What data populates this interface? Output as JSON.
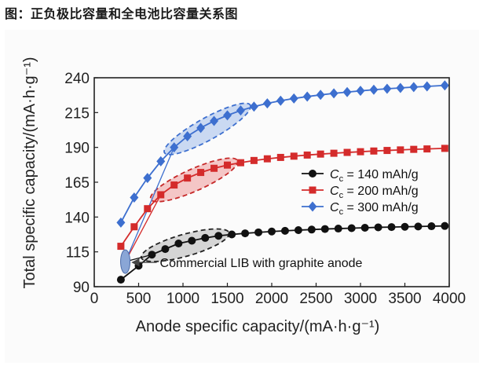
{
  "caption": "图：正负极比容量和全电池比容量关系图",
  "chart_data": {
    "type": "line",
    "xlabel": "Anode specific capacity/(mA·h·g⁻¹)",
    "ylabel": "Total specific capacity/(mA·h·g⁻¹)",
    "xlim": [
      0,
      4000
    ],
    "ylim": [
      90,
      240
    ],
    "xticks": [
      0,
      500,
      1000,
      1500,
      2000,
      2500,
      3000,
      3500,
      4000
    ],
    "yticks": [
      90,
      115,
      140,
      165,
      190,
      215,
      240
    ],
    "grid": false,
    "legend_position": "right-middle",
    "series": [
      {
        "name": "Cc = 140 mAh/g",
        "legend_prefix": "C",
        "legend_sub": "c",
        "legend_suffix": " = 140 mAh/g",
        "color": "#111111",
        "marker": "circle",
        "x": [
          300,
          500,
          650,
          800,
          950,
          1100,
          1250,
          1400,
          1550,
          1700,
          1850,
          2000,
          2150,
          2300,
          2450,
          2600,
          2750,
          2900,
          3050,
          3200,
          3350,
          3500,
          3650,
          3800,
          3950
        ],
        "y": [
          95,
          105,
          113,
          117,
          121,
          123,
          125,
          126.5,
          127.5,
          128.3,
          129,
          129.6,
          130.1,
          130.6,
          131,
          131.4,
          131.7,
          132,
          132.3,
          132.6,
          132.8,
          133,
          133.2,
          133.4,
          133.6
        ]
      },
      {
        "name": "Cc = 200 mAh/g",
        "legend_prefix": "C",
        "legend_sub": "c",
        "legend_suffix": " = 200 mAh/g",
        "color": "#d42b2b",
        "marker": "square",
        "x": [
          300,
          450,
          600,
          750,
          900,
          1050,
          1200,
          1350,
          1500,
          1650,
          1800,
          1950,
          2100,
          2250,
          2400,
          2550,
          2700,
          2850,
          3000,
          3150,
          3300,
          3450,
          3600,
          3750,
          3950
        ],
        "y": [
          119,
          133,
          146,
          156,
          163,
          168,
          172,
          175,
          177.3,
          179,
          180.6,
          181.8,
          182.8,
          183.7,
          184.5,
          185.2,
          185.8,
          186.4,
          186.9,
          187.4,
          187.8,
          188.2,
          188.6,
          188.9,
          189.3
        ]
      },
      {
        "name": "Cc = 300 mAh/g",
        "legend_prefix": "C",
        "legend_sub": "c",
        "legend_suffix": " = 300 mAh/g",
        "color": "#3d6fcf",
        "marker": "diamond",
        "x": [
          300,
          450,
          600,
          750,
          900,
          1050,
          1200,
          1350,
          1500,
          1650,
          1800,
          1950,
          2100,
          2250,
          2400,
          2550,
          2700,
          2850,
          3000,
          3150,
          3300,
          3450,
          3600,
          3750,
          3950
        ],
        "y": [
          136,
          154,
          168,
          180,
          190,
          198,
          204,
          209,
          213,
          216.5,
          219.3,
          221.6,
          223.5,
          225.1,
          226.5,
          227.7,
          228.8,
          229.7,
          230.6,
          231.4,
          232.1,
          232.7,
          233.3,
          233.8,
          234.5
        ]
      }
    ],
    "annotation": {
      "text": "Commercial LIB with graphite anode",
      "x": 350,
      "y": 108
    }
  }
}
